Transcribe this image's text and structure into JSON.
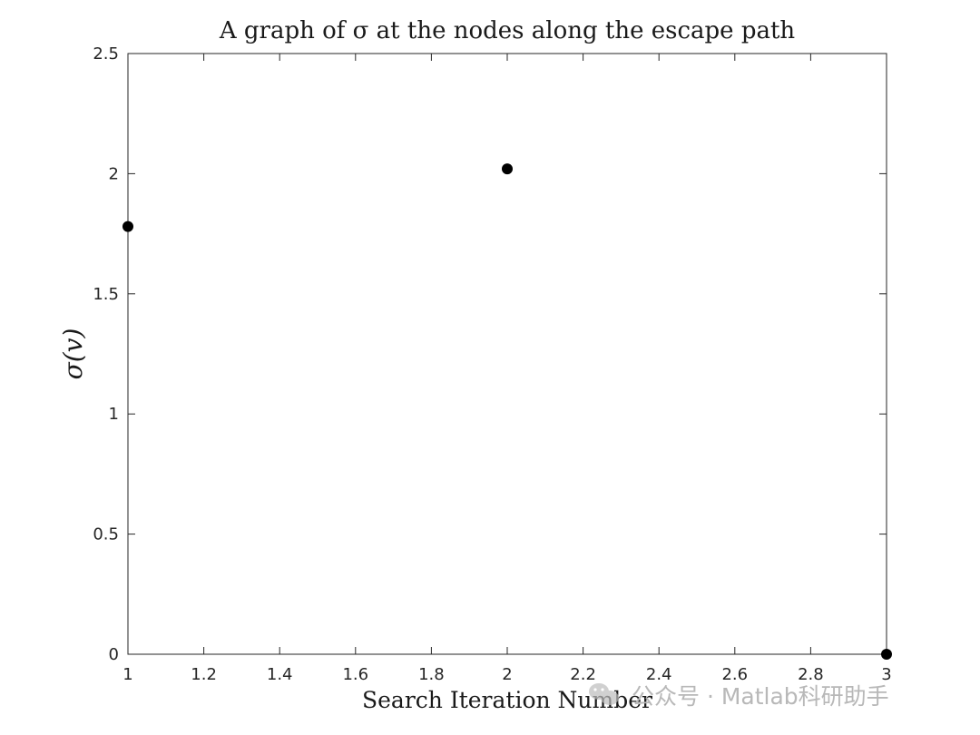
{
  "chart_data": {
    "type": "scatter",
    "title": "A graph of σ at the nodes along the escape path",
    "xlabel": "Search Iteration Number",
    "ylabel": "σ(v)",
    "xlim": [
      1,
      3
    ],
    "ylim": [
      0,
      2.5
    ],
    "xticks": [
      1,
      1.2,
      1.4,
      1.6,
      1.8,
      2,
      2.2,
      2.4,
      2.6,
      2.8,
      3
    ],
    "xtick_labels": [
      "1",
      "1.2",
      "1.4",
      "1.6",
      "1.8",
      "2",
      "2.2",
      "2.4",
      "2.6",
      "2.8",
      "3"
    ],
    "yticks": [
      0,
      0.5,
      1,
      1.5,
      2,
      2.5
    ],
    "ytick_labels": [
      "0",
      "0.5",
      "1",
      "1.5",
      "2",
      "2.5"
    ],
    "series": [
      {
        "x": [
          1,
          2,
          3
        ],
        "y": [
          1.78,
          2.02,
          0
        ],
        "color": "#000000",
        "marker": "filled-circle"
      }
    ],
    "grid": false,
    "box": true
  },
  "watermark": {
    "icon": "wechat-icon",
    "text": "公众号 · Matlab科研助手"
  }
}
